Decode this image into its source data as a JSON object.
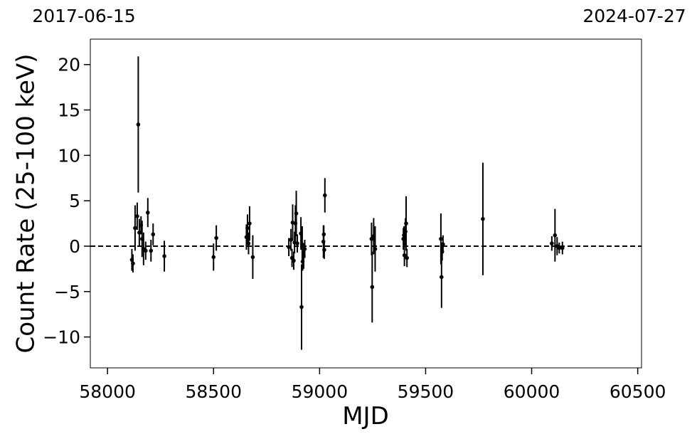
{
  "chart_data": {
    "type": "errorbar",
    "top_labels": [
      "2017-06-15",
      "2024-07-27"
    ],
    "xlabel": "MJD",
    "ylabel": "Count Rate (25-100 keV)",
    "color": "#000000",
    "hline": 0,
    "x": [
      58115,
      58120,
      58130,
      58140,
      58145,
      58150,
      58158,
      58163,
      58170,
      58180,
      58190,
      58205,
      58215,
      58268,
      58500,
      58513,
      58655,
      58660,
      58665,
      58670,
      58685,
      58855,
      58865,
      58870,
      58873,
      58878,
      58882,
      58886,
      58890,
      58895,
      58912,
      58915,
      58918,
      58920,
      58925,
      58930,
      59018,
      59020,
      59022,
      59025,
      59245,
      59248,
      59255,
      59262,
      59395,
      59398,
      59400,
      59405,
      59408,
      59412,
      59572,
      59575,
      59578,
      59582,
      59770,
      60095,
      60110,
      60120,
      60130,
      60145
    ],
    "values": [
      -1.5,
      -1.9,
      2.0,
      3.3,
      13.4,
      1.5,
      2.3,
      0.8,
      -0.3,
      -0.5,
      3.7,
      -0.5,
      1.3,
      -1.1,
      -1.2,
      0.9,
      1.0,
      2.0,
      0.3,
      2.5,
      -1.2,
      -0.1,
      0.7,
      -1.3,
      2.6,
      -1.6,
      0.4,
      2.5,
      3.6,
      0.3,
      1.4,
      -6.7,
      0.2,
      -1.7,
      -1.1,
      -0.3,
      0.5,
      1.3,
      -0.4,
      5.6,
      0.8,
      -4.5,
      1.1,
      -0.3,
      0.8,
      1.2,
      -1.0,
      1.6,
      2.5,
      -1.3,
      0.8,
      -3.4,
      -0.6,
      0.2,
      3.0,
      0.3,
      1.2,
      0.0,
      -0.2,
      -0.2
    ],
    "errors": [
      1.2,
      1.0,
      2.5,
      1.5,
      7.5,
      1.5,
      1.0,
      2.0,
      1.8,
      1.0,
      1.6,
      1.2,
      1.2,
      1.7,
      1.5,
      1.4,
      1.4,
      1.5,
      1.2,
      1.9,
      2.4,
      1.0,
      1.2,
      1.0,
      2.0,
      1.0,
      1.2,
      2.0,
      2.5,
      1.0,
      1.8,
      4.7,
      2.0,
      1.0,
      1.4,
      1.0,
      1.8,
      1.0,
      1.0,
      1.9,
      1.8,
      3.9,
      2.0,
      2.5,
      1.2,
      1.0,
      1.2,
      1.5,
      3.0,
      1.0,
      2.8,
      3.4,
      1.0,
      1.0,
      6.2,
      0.8,
      2.9,
      1.0,
      0.6,
      0.7
    ],
    "xlim": [
      57919,
      60518
    ],
    "xticks": [
      58000,
      58500,
      59000,
      59500,
      60000,
      60500
    ],
    "ylim": [
      -13.4,
      22.8
    ],
    "yticks": [
      {
        "value": -10,
        "label": "−10"
      },
      {
        "value": -5,
        "label": "−5"
      },
      0,
      5,
      10,
      15,
      20
    ]
  }
}
